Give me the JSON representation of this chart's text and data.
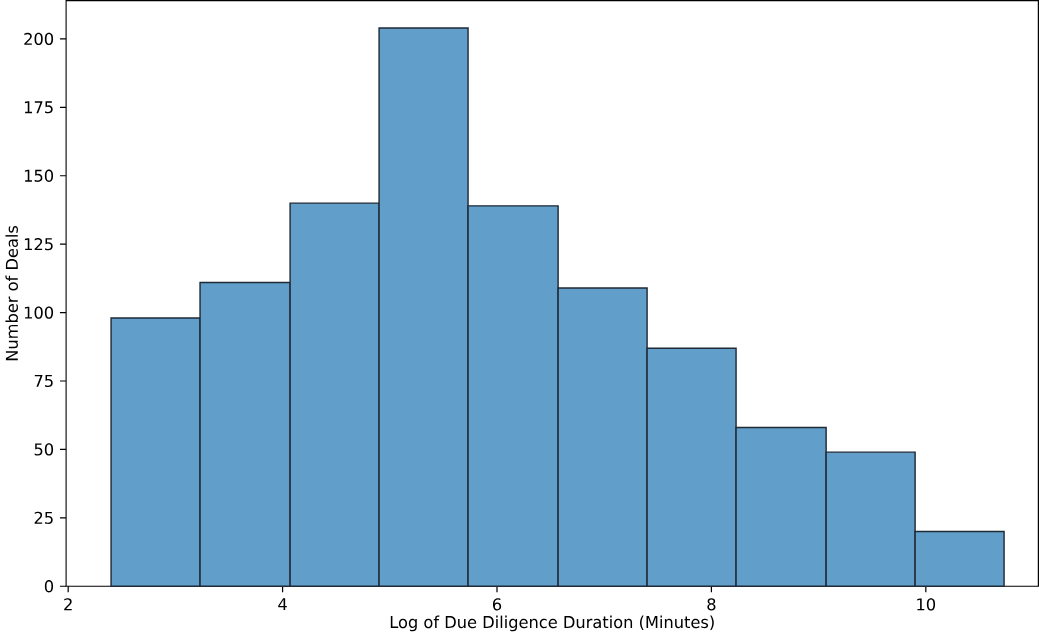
{
  "chart_data": {
    "type": "histogram",
    "xlabel": "Log of Due Diligence Duration (Minutes)",
    "ylabel": "Number of Deals",
    "bins": [
      2.4,
      3.23,
      4.07,
      4.9,
      5.73,
      6.57,
      7.4,
      8.23,
      9.07,
      9.9,
      10.73
    ],
    "values": [
      98,
      111,
      140,
      204,
      139,
      109,
      87,
      58,
      49,
      20
    ],
    "color": "#619fca",
    "xlim": [
      1.98,
      11.05
    ],
    "ylim": [
      0,
      214
    ],
    "xticks": [
      2,
      4,
      6,
      8,
      10
    ],
    "yticks": [
      0,
      25,
      50,
      75,
      100,
      125,
      150,
      175,
      200
    ],
    "grid": false
  }
}
